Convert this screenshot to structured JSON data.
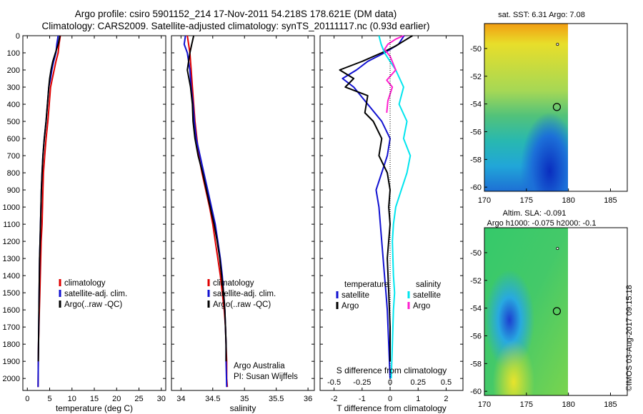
{
  "header": {
    "title_line1": "Argo profile: csiro 5901152_214 17-Nov-2011 54.218S 178.621E (DM data)",
    "title_line2": "Climatology: CARS2009. Satellite-adjusted climatology: synTS_20111117.nc (0.93d earlier)"
  },
  "colors": {
    "climatology": "#e00000",
    "satellite": "#1010d0",
    "argo": "#000000",
    "sat_salinity": "#00e5ee",
    "argo_salinity": "#ff1ecf"
  },
  "chart_data": [
    {
      "type": "line",
      "xlabel": "temperature (deg C)",
      "xlim": [
        -1,
        31
      ],
      "xticks": [
        0,
        5,
        10,
        15,
        20,
        25,
        30
      ],
      "ylim": [
        2070,
        0
      ],
      "yticks": [
        0,
        100,
        200,
        300,
        400,
        500,
        600,
        700,
        800,
        900,
        1000,
        1100,
        1200,
        1300,
        1400,
        1500,
        1600,
        1700,
        1800,
        1900,
        2000
      ],
      "legend": [
        "climatology",
        "satellite-adj. clim.",
        "Argo(..raw -QC)"
      ],
      "grid": false,
      "series": [
        {
          "name": "climatology",
          "color": "#e00000",
          "x": [
            7.4,
            7.1,
            6.9,
            6.4,
            6.0,
            5.6,
            5.2,
            4.9,
            4.6,
            4.2,
            3.9,
            3.6,
            3.5,
            3.4,
            3.3,
            3.1,
            3.0,
            2.9,
            2.8,
            2.7,
            2.6,
            2.5,
            2.45,
            2.4
          ],
          "y": [
            0,
            50,
            100,
            150,
            200,
            250,
            300,
            400,
            500,
            600,
            700,
            800,
            900,
            1000,
            1100,
            1200,
            1300,
            1400,
            1500,
            1600,
            1700,
            1800,
            1900,
            2050
          ]
        },
        {
          "name": "satellite-adj. clim.",
          "color": "#1010d0",
          "x": [
            6.9,
            6.6,
            6.4,
            5.9,
            5.5,
            5.2,
            4.8,
            4.5,
            4.2,
            3.8,
            3.5,
            3.3,
            3.15,
            3.05,
            2.95,
            2.85,
            2.75,
            2.7,
            2.65,
            2.6,
            2.55,
            2.5,
            2.45,
            2.4
          ],
          "y": [
            0,
            50,
            100,
            150,
            200,
            250,
            300,
            400,
            500,
            600,
            700,
            800,
            900,
            1000,
            1100,
            1200,
            1300,
            1400,
            1500,
            1600,
            1700,
            1800,
            1900,
            2050
          ]
        },
        {
          "name": "Argo(..raw -QC)",
          "color": "#000000",
          "x": [
            7.3,
            6.9,
            6.3,
            5.7,
            5.3,
            5.0,
            4.8,
            4.5,
            4.2,
            3.8,
            3.5,
            3.3,
            3.15,
            3.05,
            2.95,
            2.85,
            2.75,
            2.7,
            2.65,
            2.6,
            2.55,
            2.5,
            2.45
          ],
          "y": [
            0,
            50,
            100,
            150,
            200,
            250,
            300,
            400,
            500,
            600,
            700,
            800,
            900,
            1000,
            1100,
            1200,
            1300,
            1400,
            1500,
            1600,
            1700,
            1800,
            1900
          ]
        }
      ]
    },
    {
      "type": "line",
      "xlabel": "salinity",
      "xlim": [
        33.85,
        36.1
      ],
      "xticks": [
        34,
        34.5,
        35,
        35.5,
        36
      ],
      "xtick_labels": [
        "34",
        "34.5",
        "35",
        "35.5",
        "36"
      ],
      "ylim": [
        2070,
        0
      ],
      "legend": [
        "climatology",
        "satellite-adj. clim.",
        "Argo(..raw -QC)"
      ],
      "annotation": [
        "Argo Australia",
        "PI: Susan Wijffels"
      ],
      "series": [
        {
          "name": "climatology",
          "color": "#e00000",
          "x": [
            34.1,
            34.12,
            34.14,
            34.16,
            34.18,
            34.2,
            34.22,
            34.25,
            34.28,
            34.33,
            34.39,
            34.45,
            34.5,
            34.54,
            34.58,
            34.62,
            34.65,
            34.68,
            34.7,
            34.71,
            34.72,
            34.72,
            34.73
          ],
          "y": [
            0,
            50,
            100,
            200,
            300,
            400,
            500,
            600,
            700,
            800,
            900,
            1000,
            1100,
            1200,
            1300,
            1400,
            1500,
            1600,
            1700,
            1800,
            1900,
            2000,
            2050
          ]
        },
        {
          "name": "satellite-adj. clim.",
          "color": "#1010d0",
          "x": [
            34.07,
            34.05,
            34.1,
            34.14,
            34.16,
            34.19,
            34.21,
            34.24,
            34.3,
            34.36,
            34.42,
            34.48,
            34.54,
            34.58,
            34.62,
            34.65,
            34.67,
            34.69,
            34.7,
            34.71,
            34.71,
            34.72
          ],
          "y": [
            0,
            50,
            100,
            200,
            300,
            400,
            500,
            600,
            700,
            800,
            900,
            1000,
            1100,
            1200,
            1300,
            1400,
            1500,
            1600,
            1700,
            1800,
            1900,
            2050
          ]
        },
        {
          "name": "Argo(..raw -QC)",
          "color": "#000000",
          "x": [
            34.2,
            34.17,
            34.14,
            34.1,
            34.15,
            34.18,
            34.19,
            34.22,
            34.27,
            34.34,
            34.4,
            34.46,
            34.52,
            34.57,
            34.61,
            34.64,
            34.67,
            34.69,
            34.7,
            34.71,
            34.71
          ],
          "y": [
            0,
            50,
            100,
            200,
            300,
            400,
            500,
            600,
            700,
            800,
            900,
            1000,
            1100,
            1200,
            1300,
            1400,
            1500,
            1600,
            1700,
            1800,
            1900
          ]
        }
      ]
    },
    {
      "type": "line",
      "xlabel": "T difference from climatology",
      "xlabel2": "S difference from climatology",
      "xlim": [
        -2.5,
        2.6
      ],
      "xticks": [
        -2,
        -1,
        0,
        1,
        2
      ],
      "xtick_labels": [
        "-2",
        "-1",
        "0",
        "1",
        "2"
      ],
      "s_xtick_values": [
        -0.5,
        -0.25,
        0,
        0.25,
        0.5
      ],
      "s_xtick_labels": [
        "-0.5",
        "-0.25",
        "0",
        "0.25",
        "0.5"
      ],
      "s_scale": 4,
      "ylim": [
        2070,
        0
      ],
      "legend": [
        "temperature",
        "satellite",
        "Argo",
        "salinity",
        "satellite",
        "Argo"
      ],
      "series": [
        {
          "name": "temperature satellite",
          "color": "#1010d0",
          "x": [
            0.5,
            0.3,
            -0.2,
            -0.8,
            -1.2,
            -1.7,
            -1.3,
            -0.8,
            -0.3,
            0.0,
            -0.1,
            -0.3,
            -0.5,
            -0.4,
            -0.3,
            -0.2,
            -0.15,
            -0.1,
            -0.05,
            0.0
          ],
          "y": [
            0,
            50,
            100,
            150,
            200,
            250,
            300,
            400,
            500,
            600,
            700,
            800,
            900,
            1000,
            1200,
            1400,
            1500,
            1600,
            1800,
            2000
          ]
        },
        {
          "name": "temperature Argo",
          "color": "#000000",
          "x": [
            0.8,
            0.5,
            0.2,
            -0.3,
            -1.0,
            -1.8,
            -1.3,
            -1.6,
            -0.8,
            -0.9,
            -0.6,
            -0.3,
            -0.4,
            -0.1,
            0.0,
            -0.05,
            0.0,
            -0.1,
            -0.05,
            0.0,
            0.0
          ],
          "y": [
            0,
            30,
            60,
            100,
            150,
            200,
            250,
            300,
            350,
            450,
            500,
            600,
            700,
            800,
            900,
            1000,
            1100,
            1300,
            1500,
            1700,
            1900
          ]
        },
        {
          "name": "salinity satellite",
          "color": "#00e5ee",
          "x": [
            -0.1,
            -0.08,
            -0.05,
            0.0,
            0.05,
            0.12,
            0.08,
            0.15,
            0.12,
            0.18,
            0.15,
            0.1,
            0.05,
            0.03,
            0.02,
            0.03,
            0.04,
            0.03,
            0.02,
            0.01
          ],
          "y": [
            0,
            50,
            100,
            150,
            200,
            300,
            400,
            500,
            600,
            700,
            800,
            900,
            1000,
            1100,
            1200,
            1400,
            1500,
            1600,
            1800,
            2000
          ]
        },
        {
          "name": "salinity Argo",
          "color": "#ff1ecf",
          "x": [
            0.12,
            0.05,
            -0.02,
            -0.05,
            0.0,
            0.05,
            -0.03,
            0.02,
            -0.02,
            -0.03
          ],
          "y": [
            0,
            20,
            50,
            80,
            120,
            200,
            260,
            300,
            380,
            450
          ]
        }
      ]
    },
    {
      "type": "heatmap",
      "title": "sat. SST: 6.31  Argo: 7.08",
      "xlim": [
        170,
        187
      ],
      "ylim": [
        -60.3,
        -48.2
      ],
      "xticks": [
        170,
        175,
        180,
        185
      ],
      "yticks": [
        -50,
        -52,
        -54,
        -56,
        -58,
        -60
      ],
      "marker": [
        178.621,
        -54.218
      ]
    },
    {
      "type": "heatmap",
      "title_line1": "Altim. SLA: -0.091",
      "title_line2": "Argo h1000: -0.075  h2000: -0.1",
      "xlim": [
        170,
        187
      ],
      "ylim": [
        -60.3,
        -48.2
      ],
      "xticks": [
        170,
        175,
        180,
        185
      ],
      "yticks": [
        -50,
        -52,
        -54,
        -56,
        -58,
        -60
      ],
      "marker": [
        178.621,
        -54.218
      ]
    }
  ],
  "footer": {
    "stamp": "©IMOS 03-Aug-2017 09:15:18"
  }
}
